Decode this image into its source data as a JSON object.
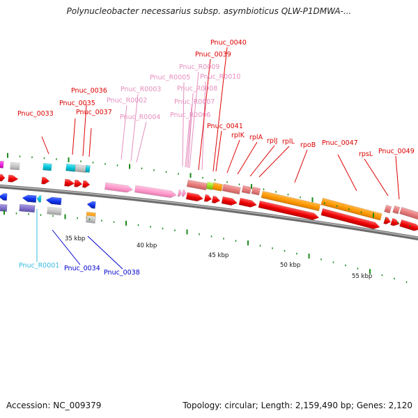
{
  "title": "Polynucleobacter necessarius subsp. asymbioticus QLW-P1DMWA-...",
  "footer": {
    "accession": "Accession: NC_009379",
    "summary": "Topology: circular; Length: 2,159,490 bp; Genes: 2,120"
  },
  "colors": {
    "backbone": "#8c8c8c",
    "cds_forward": "#ee0000",
    "cds_reverse": "#1133ee",
    "rrna": "#ff99cc",
    "trna": "#00c4d8",
    "tick": "#1a8a1a",
    "label_red": "#dd0000",
    "label_pink": "#e58fbe",
    "label_blue": "#0000cc",
    "label_cyan": "#33bbdd"
  },
  "scale_labels": [
    {
      "id": "35kbp",
      "text": "35 kbp"
    },
    {
      "id": "40kbp",
      "text": "40 kbp"
    },
    {
      "id": "45kbp",
      "text": "45 kbp"
    },
    {
      "id": "50kbp",
      "text": "50 kbp"
    },
    {
      "id": "55kbp",
      "text": "55 kbp"
    }
  ],
  "gene_labels": [
    {
      "id": "Pnuc_0033",
      "text": "Pnuc_0033",
      "class": "red"
    },
    {
      "id": "Pnuc_0035",
      "text": "Pnuc_0035",
      "class": "red"
    },
    {
      "id": "Pnuc_0036",
      "text": "Pnuc_0036",
      "class": "red"
    },
    {
      "id": "Pnuc_0037",
      "text": "Pnuc_0037",
      "class": "red"
    },
    {
      "id": "Pnuc_R0002",
      "text": "Pnuc_R0002",
      "class": "pink"
    },
    {
      "id": "Pnuc_R0003",
      "text": "Pnuc_R0003",
      "class": "pink"
    },
    {
      "id": "Pnuc_R0004",
      "text": "Pnuc_R0004",
      "class": "pink"
    },
    {
      "id": "Pnuc_R0005",
      "text": "Pnuc_R0005",
      "class": "pink"
    },
    {
      "id": "Pnuc_R0006",
      "text": "Pnuc_R0006",
      "class": "pink"
    },
    {
      "id": "Pnuc_R0007",
      "text": "Pnuc_R0007",
      "class": "pink"
    },
    {
      "id": "Pnuc_R0008",
      "text": "Pnuc_R0008",
      "class": "pink"
    },
    {
      "id": "Pnuc_R0009",
      "text": "Pnuc_R0009",
      "class": "pink"
    },
    {
      "id": "Pnuc_R0010",
      "text": "Pnuc_R0010",
      "class": "pink"
    },
    {
      "id": "Pnuc_0039",
      "text": "Pnuc_0039",
      "class": "red"
    },
    {
      "id": "Pnuc_0040",
      "text": "Pnuc_0040",
      "class": "red"
    },
    {
      "id": "Pnuc_0041",
      "text": "Pnuc_0041",
      "class": "red"
    },
    {
      "id": "rplK",
      "text": "rplK",
      "class": "red"
    },
    {
      "id": "rplA",
      "text": "rplA",
      "class": "red"
    },
    {
      "id": "rplJ",
      "text": "rplJ",
      "class": "red"
    },
    {
      "id": "rplL",
      "text": "rplL",
      "class": "red"
    },
    {
      "id": "rpoB",
      "text": "rpoB",
      "class": "red"
    },
    {
      "id": "Pnuc_0047",
      "text": "Pnuc_0047",
      "class": "red"
    },
    {
      "id": "rpsL",
      "text": "rpsL",
      "class": "red"
    },
    {
      "id": "Pnuc_0049",
      "text": "Pnuc_0049",
      "class": "red"
    },
    {
      "id": "Pnuc_R0001",
      "text": "Pnuc_R0001",
      "class": "cyan"
    },
    {
      "id": "Pnuc_0034",
      "text": "Pnuc_0034",
      "class": "blue"
    },
    {
      "id": "Pnuc_0038",
      "text": "Pnuc_0038",
      "class": "blue"
    }
  ]
}
